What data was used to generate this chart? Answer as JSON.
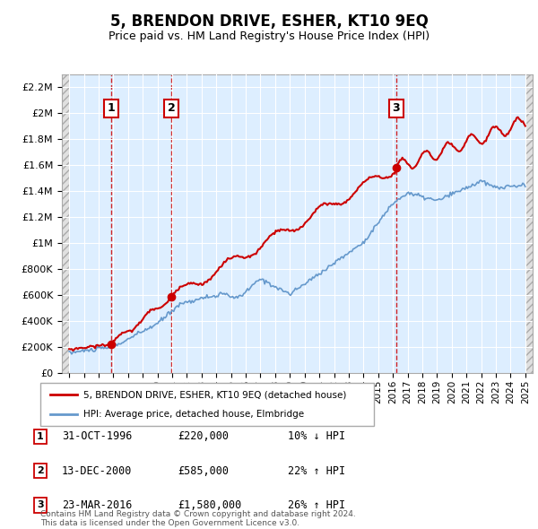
{
  "title": "5, BRENDON DRIVE, ESHER, KT10 9EQ",
  "subtitle": "Price paid vs. HM Land Registry's House Price Index (HPI)",
  "ytick_values": [
    0,
    200000,
    400000,
    600000,
    800000,
    1000000,
    1200000,
    1400000,
    1600000,
    1800000,
    2000000,
    2200000
  ],
  "ylim": [
    0,
    2300000
  ],
  "xlim_start": 1993.5,
  "xlim_end": 2025.5,
  "legend_line1": "5, BRENDON DRIVE, ESHER, KT10 9EQ (detached house)",
  "legend_line2": "HPI: Average price, detached house, Elmbridge",
  "transactions": [
    {
      "num": 1,
      "date": "31-OCT-1996",
      "price": 220000,
      "year": 1996.83,
      "hpi_pct": "10% ↓ HPI"
    },
    {
      "num": 2,
      "date": "13-DEC-2000",
      "price": 585000,
      "year": 2000.95,
      "hpi_pct": "22% ↑ HPI"
    },
    {
      "num": 3,
      "date": "23-MAR-2016",
      "price": 1580000,
      "year": 2016.22,
      "hpi_pct": "26% ↑ HPI"
    }
  ],
  "line_color_red": "#cc0000",
  "line_color_blue": "#6699cc",
  "dashed_line_color": "#cc0000",
  "grid_color": "#ffffff",
  "plot_bg_color": "#ddeeff",
  "hatch_color": "#cccccc",
  "footer": "Contains HM Land Registry data © Crown copyright and database right 2024.\nThis data is licensed under the Open Government Licence v3.0."
}
